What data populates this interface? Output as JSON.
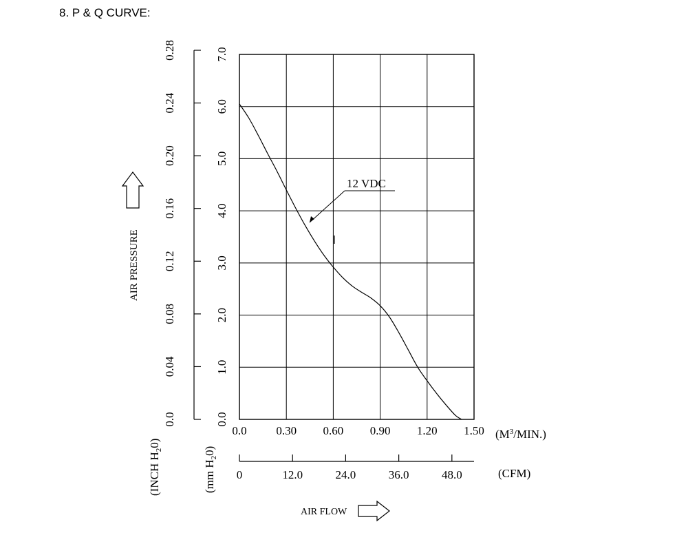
{
  "heading": "8. P & Q CURVE:",
  "chart_data": {
    "type": "line",
    "title": "P & Q CURVE",
    "x_primary": {
      "unit_label_prefix": "(M",
      "unit_label_sup": "3",
      "unit_label_suffix": "/MIN.)",
      "range": [
        0,
        1.5
      ],
      "ticks": [
        "0.0",
        "0.30",
        "0.60",
        "0.90",
        "1.20",
        "1.50"
      ]
    },
    "x_secondary": {
      "unit_label": "(CFM)",
      "range": [
        0,
        53
      ],
      "ticks": [
        "0",
        "12.0",
        "24.0",
        "36.0",
        "48.0"
      ],
      "tick_values": [
        0,
        12,
        24,
        36,
        48
      ]
    },
    "y_primary": {
      "unit_label_prefix": "(mm H",
      "unit_label_sub": "2",
      "unit_label_suffix": "0)",
      "range": [
        0,
        7
      ],
      "ticks": [
        "0.0",
        "1.0",
        "2.0",
        "3.0",
        "4.0",
        "5.0",
        "6.0",
        "7.0"
      ]
    },
    "y_secondary": {
      "unit_label_prefix": "(INCH H",
      "unit_label_sub": "2",
      "unit_label_suffix": "0)",
      "range": [
        0,
        0.28
      ],
      "ticks": [
        "0.0",
        "0.04",
        "0.08",
        "0.12",
        "0.16",
        "0.20",
        "0.24",
        "0.28"
      ]
    },
    "xlabel": "AIR FLOW",
    "ylabel": "AIR PRESSURE",
    "grid": true,
    "series": [
      {
        "name": "12 VDC",
        "x": [
          0.0,
          0.06,
          0.12,
          0.18,
          0.24,
          0.3,
          0.36,
          0.42,
          0.48,
          0.54,
          0.6,
          0.66,
          0.72,
          0.78,
          0.84,
          0.9,
          0.96,
          1.02,
          1.08,
          1.14,
          1.2,
          1.26,
          1.32,
          1.38,
          1.42
        ],
        "y": [
          6.05,
          5.78,
          5.45,
          5.1,
          4.76,
          4.4,
          4.05,
          3.72,
          3.42,
          3.15,
          2.92,
          2.72,
          2.56,
          2.44,
          2.33,
          2.18,
          1.96,
          1.66,
          1.33,
          1.0,
          0.74,
          0.5,
          0.28,
          0.08,
          0.0
        ]
      }
    ]
  }
}
